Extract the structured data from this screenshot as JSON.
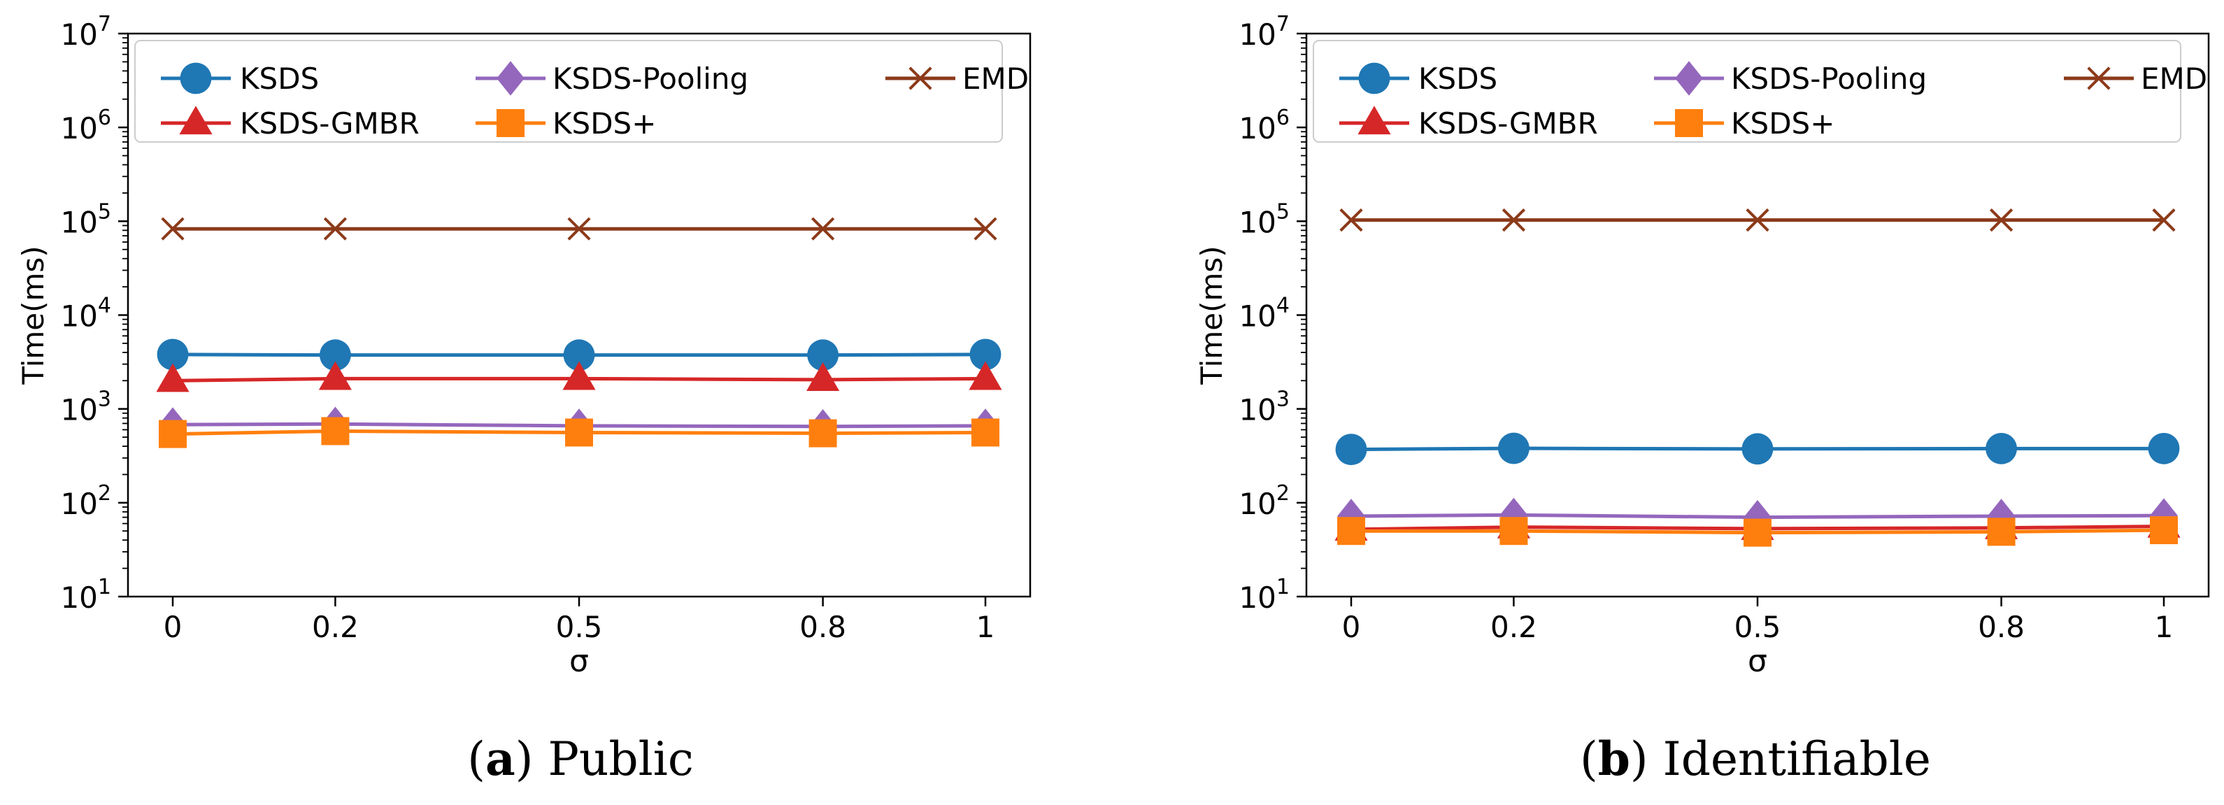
{
  "chart_data": [
    {
      "type": "line",
      "panel_id": "a",
      "caption_label": "(a)",
      "caption_letter": "a",
      "caption_text": "Public",
      "title": "",
      "xlabel": "σ",
      "ylabel": "Time(ms)",
      "yscale": "log",
      "ylim": [
        10,
        10000000
      ],
      "x_tick_labels": [
        "0",
        "0.2",
        "0.5",
        "0.8",
        "1"
      ],
      "x": [
        0,
        0.2,
        0.5,
        0.8,
        1
      ],
      "y_tick_labels": [
        {
          "base": "10",
          "exp": "1"
        },
        {
          "base": "10",
          "exp": "2"
        },
        {
          "base": "10",
          "exp": "3"
        },
        {
          "base": "10",
          "exp": "4"
        },
        {
          "base": "10",
          "exp": "5"
        },
        {
          "base": "10",
          "exp": "6"
        },
        {
          "base": "10",
          "exp": "7"
        }
      ],
      "legend": {
        "location": "top",
        "columns": 3
      },
      "series": [
        {
          "name": "KSDS",
          "color": "#1f77b4",
          "marker": "circle",
          "values": [
            3800,
            3750,
            3750,
            3750,
            3800
          ]
        },
        {
          "name": "KSDS-GMBR",
          "color": "#d62728",
          "marker": "triangle",
          "values": [
            2000,
            2100,
            2100,
            2050,
            2100
          ]
        },
        {
          "name": "KSDS-Pooling",
          "color": "#9467bd",
          "marker": "diamond",
          "values": [
            680,
            690,
            660,
            650,
            660
          ]
        },
        {
          "name": "KSDS+",
          "color": "#ff7f0e",
          "marker": "square",
          "values": [
            540,
            580,
            560,
            550,
            560
          ]
        },
        {
          "name": "EMD",
          "color": "#8c3a1a",
          "marker": "x",
          "values": [
            83000,
            83000,
            83000,
            83000,
            83000
          ]
        }
      ]
    },
    {
      "type": "line",
      "panel_id": "b",
      "caption_label": "(b)",
      "caption_letter": "b",
      "caption_text": "Identifiable",
      "title": "",
      "xlabel": "σ",
      "ylabel": "Time(ms)",
      "yscale": "log",
      "ylim": [
        10,
        10000000
      ],
      "x_tick_labels": [
        "0",
        "0.2",
        "0.5",
        "0.8",
        "1"
      ],
      "x": [
        0,
        0.2,
        0.5,
        0.8,
        1
      ],
      "y_tick_labels": [
        {
          "base": "10",
          "exp": "1"
        },
        {
          "base": "10",
          "exp": "2"
        },
        {
          "base": "10",
          "exp": "3"
        },
        {
          "base": "10",
          "exp": "4"
        },
        {
          "base": "10",
          "exp": "5"
        },
        {
          "base": "10",
          "exp": "6"
        },
        {
          "base": "10",
          "exp": "7"
        }
      ],
      "legend": {
        "location": "top",
        "columns": 3
      },
      "series": [
        {
          "name": "KSDS",
          "color": "#1f77b4",
          "marker": "circle",
          "values": [
            370,
            380,
            375,
            378,
            378
          ]
        },
        {
          "name": "KSDS-GMBR",
          "color": "#d62728",
          "marker": "triangle",
          "values": [
            52,
            55,
            53,
            54,
            56
          ]
        },
        {
          "name": "KSDS-Pooling",
          "color": "#9467bd",
          "marker": "diamond",
          "values": [
            72,
            74,
            70,
            72,
            73
          ]
        },
        {
          "name": "KSDS+",
          "color": "#ff7f0e",
          "marker": "square",
          "values": [
            50,
            50,
            48,
            49,
            51
          ]
        },
        {
          "name": "EMD",
          "color": "#8c3a1a",
          "marker": "x",
          "values": [
            103000,
            103000,
            103000,
            103000,
            103000
          ]
        }
      ]
    }
  ]
}
